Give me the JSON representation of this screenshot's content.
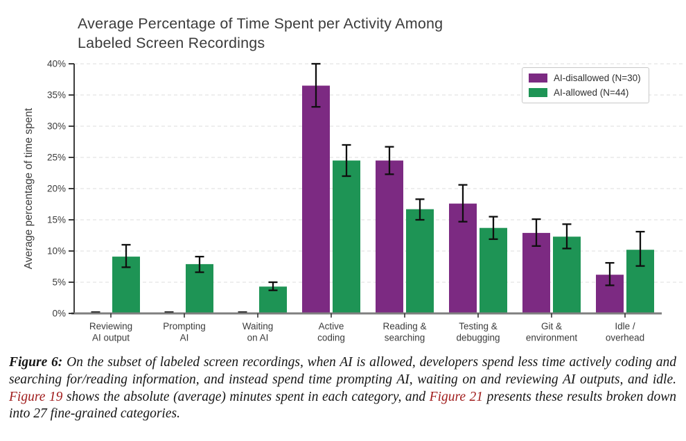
{
  "chart_data": {
    "type": "bar",
    "title": "Average Percentage of Time Spent per Activity Among Labeled Screen Recordings",
    "title_lines": [
      "Average Percentage of Time Spent per Activity Among",
      "Labeled Screen Recordings"
    ],
    "ylabel": "Average percentage of time spent",
    "xlabel": "",
    "ylim": [
      0,
      40
    ],
    "ytick_step": 5,
    "ytick_labels": [
      "0%",
      "5%",
      "10%",
      "15%",
      "20%",
      "25%",
      "30%",
      "35%",
      "40%"
    ],
    "grid": "horizontal-dashed",
    "legend_position": "top-right",
    "error_bars": true,
    "categories": [
      "Reviewing AI output",
      "Prompting AI",
      "Waiting on AI",
      "Active coding",
      "Reading & searching",
      "Testing & debugging",
      "Git & environment",
      "Idle / overhead"
    ],
    "category_label_lines": [
      [
        "Reviewing",
        "AI output"
      ],
      [
        "Prompting",
        "AI"
      ],
      [
        "Waiting",
        "on AI"
      ],
      [
        "Active",
        "coding"
      ],
      [
        "Reading &",
        "searching"
      ],
      [
        "Testing &",
        "debugging"
      ],
      [
        "Git &",
        "environment"
      ],
      [
        "Idle /",
        "overhead"
      ]
    ],
    "series": [
      {
        "name": "AI-disallowed (N=30)",
        "color": "#7c2a82",
        "values": [
          0.1,
          0.1,
          0.1,
          36.5,
          24.5,
          17.6,
          12.9,
          6.2
        ],
        "err_minus": [
          0.1,
          0.1,
          0.1,
          3.4,
          2.2,
          2.9,
          2.1,
          1.7
        ],
        "err_plus": [
          0.1,
          0.1,
          0.1,
          3.5,
          2.2,
          3.0,
          2.2,
          1.9
        ]
      },
      {
        "name": "AI-allowed (N=44)",
        "color": "#1e9455",
        "values": [
          9.1,
          7.9,
          4.3,
          24.5,
          16.7,
          13.7,
          12.3,
          10.2
        ],
        "err_minus": [
          1.7,
          1.3,
          0.6,
          2.5,
          1.7,
          1.8,
          1.9,
          2.6
        ],
        "err_plus": [
          1.9,
          1.2,
          0.7,
          2.5,
          1.6,
          1.8,
          2.0,
          2.9
        ]
      }
    ]
  },
  "figure": {
    "caption": {
      "prefix": "Figure 6:",
      "seg1": " On the subset of labeled screen recordings, when AI is allowed, developers spend less time actively coding and searching for/reading information, and instead spend time prompting AI, waiting on and reviewing AI outputs, and idle. ",
      "link1": "Figure 19",
      "seg2": " shows the absolute (average) minutes spent in each category, and ",
      "link2": "Figure 21",
      "seg3": " presents these results broken down into 27 fine-grained categories.",
      "link_color": "#a01c1c"
    }
  }
}
